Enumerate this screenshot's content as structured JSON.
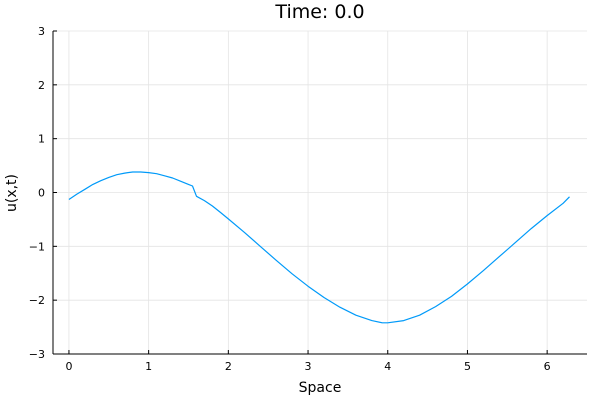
{
  "chart_data": {
    "type": "line",
    "title": "Time: 0.0",
    "xlabel": "Space",
    "ylabel": "u(x,t)",
    "xlim": [
      -0.2,
      6.5
    ],
    "ylim": [
      -3,
      3
    ],
    "xticks": [
      0,
      1,
      2,
      3,
      4,
      5,
      6
    ],
    "yticks": [
      -3,
      -2,
      -1,
      0,
      1,
      2,
      3
    ],
    "xtick_labels": [
      "0",
      "1",
      "2",
      "3",
      "4",
      "5",
      "6"
    ],
    "ytick_labels": [
      "−3",
      "−2",
      "−1",
      "0",
      "1",
      "2",
      "3"
    ],
    "grid": true,
    "legend": "none",
    "series": [
      {
        "color": "#009af9",
        "x": [
          0.0,
          0.1,
          0.2,
          0.3,
          0.4,
          0.5,
          0.6,
          0.7,
          0.8,
          0.9,
          1.0,
          1.1,
          1.2,
          1.3,
          1.4,
          1.5,
          1.55,
          1.6,
          1.7,
          1.8,
          1.9,
          2.0,
          2.2,
          2.4,
          2.6,
          2.8,
          3.0,
          3.2,
          3.4,
          3.6,
          3.8,
          3.93,
          4.0,
          4.2,
          4.4,
          4.6,
          4.8,
          5.0,
          5.2,
          5.4,
          5.6,
          5.8,
          6.0,
          6.2,
          6.28
        ],
        "y": [
          -0.13,
          -0.03,
          0.06,
          0.15,
          0.22,
          0.28,
          0.33,
          0.36,
          0.38,
          0.38,
          0.37,
          0.35,
          0.31,
          0.27,
          0.21,
          0.15,
          0.12,
          -0.07,
          -0.15,
          -0.25,
          -0.37,
          -0.49,
          -0.74,
          -1.0,
          -1.26,
          -1.51,
          -1.74,
          -1.95,
          -2.13,
          -2.28,
          -2.38,
          -2.42,
          -2.42,
          -2.38,
          -2.28,
          -2.12,
          -1.93,
          -1.7,
          -1.45,
          -1.19,
          -0.93,
          -0.67,
          -0.43,
          -0.2,
          -0.08
        ]
      }
    ]
  }
}
